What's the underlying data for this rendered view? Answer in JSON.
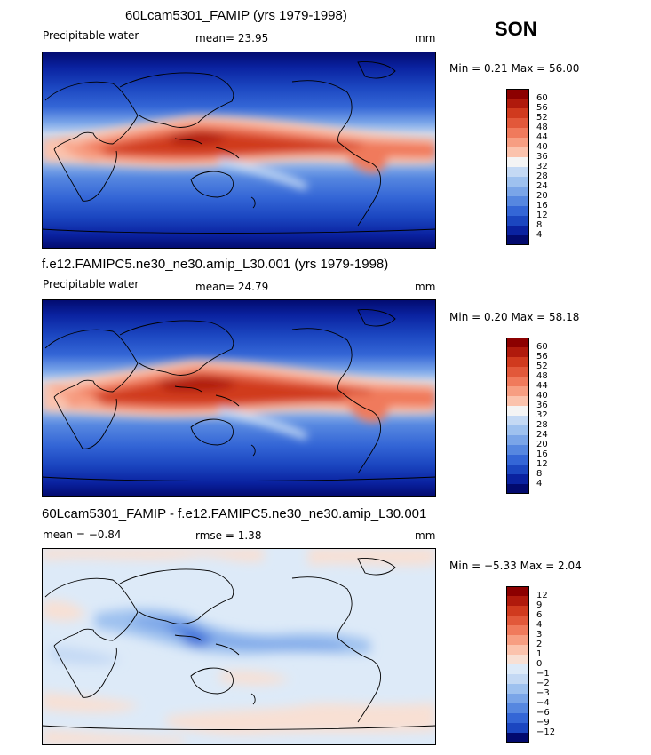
{
  "season": "SON",
  "panels": [
    {
      "title": "60Lcam5301_FAMIP (yrs 1979-1998)",
      "left_label": "Precipitable water",
      "stat_text": "mean=  23.95",
      "units": "mm",
      "minmax": "Min =    0.21 Max =  56.00",
      "levels": [
        "60",
        "56",
        "52",
        "48",
        "44",
        "40",
        "36",
        "32",
        "28",
        "24",
        "20",
        "16",
        "12",
        "8",
        "4"
      ],
      "colors": [
        "#8c0000",
        "#b01a0c",
        "#d03a1e",
        "#e2583a",
        "#f07a5c",
        "#f79e82",
        "#fbc3ad",
        "#f4f4f4",
        "#c4d9f4",
        "#9ec1ef",
        "#7aa5e8",
        "#5687e0",
        "#3466d6",
        "#1b46c0",
        "#0a22a0",
        "#020a6e"
      ]
    },
    {
      "title": "f.e12.FAMIPC5.ne30_ne30.amip_L30.001 (yrs 1979-1998)",
      "left_label": "Precipitable water",
      "stat_text": "mean=  24.79",
      "units": "mm",
      "minmax": "Min =    0.20 Max =  58.18",
      "levels": [
        "60",
        "56",
        "52",
        "48",
        "44",
        "40",
        "36",
        "32",
        "28",
        "24",
        "20",
        "16",
        "12",
        "8",
        "4"
      ],
      "colors": [
        "#8c0000",
        "#b01a0c",
        "#d03a1e",
        "#e2583a",
        "#f07a5c",
        "#f79e82",
        "#fbc3ad",
        "#f4f4f4",
        "#c4d9f4",
        "#9ec1ef",
        "#7aa5e8",
        "#5687e0",
        "#3466d6",
        "#1b46c0",
        "#0a22a0",
        "#020a6e"
      ]
    },
    {
      "title": "60Lcam5301_FAMIP - f.e12.FAMIPC5.ne30_ne30.amip_L30.001",
      "left_label": "mean =  −0.84",
      "stat_text": "rmse =    1.38",
      "units": "mm",
      "minmax": "Min =  −5.33 Max =    2.04",
      "levels": [
        "12",
        "9",
        "6",
        "4",
        "3",
        "2",
        "1",
        "0",
        "−1",
        "−2",
        "−3",
        "−4",
        "−6",
        "−9",
        "−12"
      ],
      "colors": [
        "#8c0000",
        "#b01a0c",
        "#d03a1e",
        "#e2583a",
        "#f07a5c",
        "#f79e82",
        "#fbc3ad",
        "#f8e0d4",
        "#ddeaf8",
        "#c4d9f4",
        "#9ec1ef",
        "#7aa5e8",
        "#5687e0",
        "#3466d6",
        "#1b46c0",
        "#020a6e"
      ]
    }
  ]
}
